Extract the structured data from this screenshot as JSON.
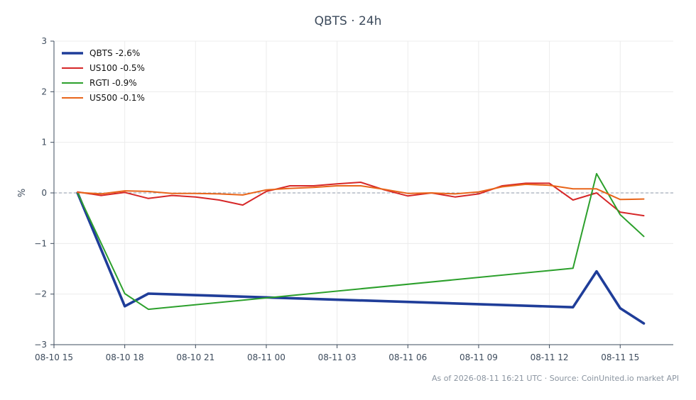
{
  "header": {
    "title": "QBTS · 24h"
  },
  "footer": {
    "note": "As of 2026-08-11 16:21 UTC · Source: CoinUnited.io market API"
  },
  "chart_data": {
    "type": "line",
    "title": "QBTS · 24h",
    "xlabel": "",
    "ylabel": "%",
    "ylim": [
      -3,
      3
    ],
    "yticks": [
      -3,
      -2,
      -1,
      0,
      1,
      2,
      3
    ],
    "ytick_labels": [
      "−3",
      "−2",
      "−1",
      "0",
      "1",
      "2",
      "3"
    ],
    "xlim": [
      "2026-08-10 15:00",
      "2026-08-11 17:15"
    ],
    "xticks": [
      "2026-08-10 15:00",
      "2026-08-10 18:00",
      "2026-08-10 21:00",
      "2026-08-11 00:00",
      "2026-08-11 03:00",
      "2026-08-11 06:00",
      "2026-08-11 09:00",
      "2026-08-11 12:00",
      "2026-08-11 15:00"
    ],
    "xtick_labels": [
      "08-10 15",
      "08-10 18",
      "08-10 21",
      "08-11 00",
      "08-11 03",
      "08-11 06",
      "08-11 09",
      "08-11 12",
      "08-11 15"
    ],
    "grid": true,
    "zero_line": true,
    "legend_position": "top-left",
    "series": [
      {
        "name": "QBTS -2.6%",
        "color": "#1f3d99",
        "width": "thick",
        "x": [
          "2026-08-10 16:00",
          "2026-08-10 18:00",
          "2026-08-10 19:00",
          "2026-08-11 13:00",
          "2026-08-11 14:00",
          "2026-08-11 15:00",
          "2026-08-11 16:00"
        ],
        "y": [
          0.0,
          -2.24,
          -1.99,
          -2.26,
          -1.55,
          -2.28,
          -2.58
        ]
      },
      {
        "name": "US100 -0.5%",
        "color": "#d62728",
        "x": [
          "2026-08-10 16:00",
          "2026-08-10 17:00",
          "2026-08-10 18:00",
          "2026-08-10 19:00",
          "2026-08-10 20:00",
          "2026-08-10 21:00",
          "2026-08-10 22:00",
          "2026-08-10 23:00",
          "2026-08-11 00:00",
          "2026-08-11 01:00",
          "2026-08-11 02:00",
          "2026-08-11 03:00",
          "2026-08-11 04:00",
          "2026-08-11 05:00",
          "2026-08-11 06:00",
          "2026-08-11 07:00",
          "2026-08-11 08:00",
          "2026-08-11 09:00",
          "2026-08-11 10:00",
          "2026-08-11 11:00",
          "2026-08-11 12:00",
          "2026-08-11 13:00",
          "2026-08-11 14:00",
          "2026-08-11 15:00",
          "2026-08-11 16:00"
        ],
        "y": [
          0.02,
          -0.05,
          0.01,
          -0.11,
          -0.05,
          -0.08,
          -0.14,
          -0.24,
          0.03,
          0.14,
          0.14,
          0.18,
          0.21,
          0.06,
          -0.06,
          0.0,
          -0.08,
          -0.02,
          0.14,
          0.19,
          0.19,
          -0.14,
          0.0,
          -0.38,
          -0.45
        ]
      },
      {
        "name": "RGTI -0.9%",
        "color": "#2ca02c",
        "x": [
          "2026-08-10 16:00",
          "2026-08-10 18:00",
          "2026-08-10 19:00",
          "2026-08-11 13:00",
          "2026-08-11 14:00",
          "2026-08-11 15:00",
          "2026-08-11 16:00"
        ],
        "y": [
          0.0,
          -1.99,
          -2.3,
          -1.49,
          0.38,
          -0.43,
          -0.86
        ]
      },
      {
        "name": "US500 -0.1%",
        "color": "#e8651a",
        "x": [
          "2026-08-10 16:00",
          "2026-08-10 17:00",
          "2026-08-10 18:00",
          "2026-08-10 19:00",
          "2026-08-10 20:00",
          "2026-08-10 21:00",
          "2026-08-10 22:00",
          "2026-08-10 23:00",
          "2026-08-11 00:00",
          "2026-08-11 01:00",
          "2026-08-11 02:00",
          "2026-08-11 03:00",
          "2026-08-11 04:00",
          "2026-08-11 05:00",
          "2026-08-11 06:00",
          "2026-08-11 07:00",
          "2026-08-11 08:00",
          "2026-08-11 09:00",
          "2026-08-11 10:00",
          "2026-08-11 11:00",
          "2026-08-11 12:00",
          "2026-08-11 13:00",
          "2026-08-11 14:00",
          "2026-08-11 15:00",
          "2026-08-11 16:00"
        ],
        "y": [
          0.01,
          -0.02,
          0.04,
          0.03,
          -0.01,
          -0.01,
          -0.02,
          -0.04,
          0.06,
          0.09,
          0.11,
          0.14,
          0.14,
          0.07,
          -0.01,
          0.0,
          -0.02,
          0.02,
          0.12,
          0.17,
          0.15,
          0.08,
          0.08,
          -0.13,
          -0.12
        ]
      }
    ]
  }
}
